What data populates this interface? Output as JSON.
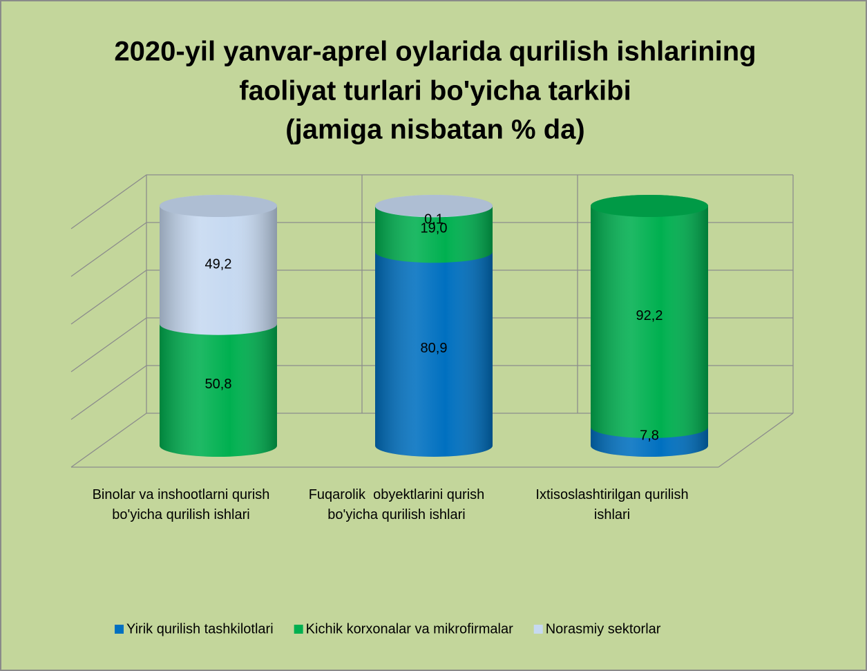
{
  "chart_data": {
    "type": "bar3d_stacked_cylinder",
    "title": [
      "2020-yil yanvar-aprel oylarida qurilish ishlarining",
      "faoliyat turlari bo'yicha tarkibi",
      "(jamiga nisbatan % da)"
    ],
    "categories": [
      "Binolar va inshootlarni qurish bo'yicha qurilish ishlari",
      "Fuqarolik  obyektlarini qurish bo'yicha qurilish ishlari",
      "Ixtisoslashtirilgan qurilish ishlari"
    ],
    "series": [
      {
        "name": "Yirik qurilish tashkilotlari",
        "color": "#0070c0",
        "values": [
          null,
          80.9,
          7.8
        ],
        "value_labels": [
          null,
          "80,9",
          "7,8"
        ]
      },
      {
        "name": "Kichik korxonalar va mikrofirmalar",
        "color": "#00b050",
        "values": [
          50.8,
          19.0,
          92.2
        ],
        "value_labels": [
          "50,8",
          "19,0",
          "92,2"
        ]
      },
      {
        "name": "Norasmiy sektorlar",
        "color": "#c6d9f1",
        "values": [
          49.2,
          0.1,
          null
        ],
        "value_labels": [
          "49,2",
          "0,1",
          null
        ]
      }
    ],
    "ylim": [
      0,
      100
    ],
    "yticks": [
      0,
      20,
      40,
      60,
      80,
      100
    ],
    "grid": true,
    "legend": "bottom"
  }
}
